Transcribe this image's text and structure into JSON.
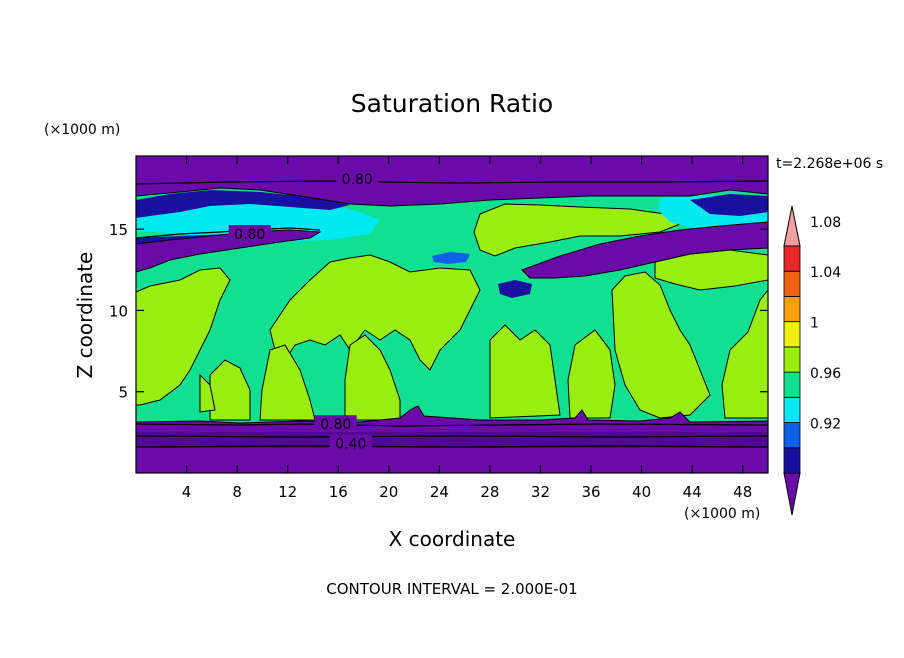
{
  "chart_data": {
    "type": "heatmap",
    "title": "Saturation Ratio",
    "xlabel": "X coordinate",
    "ylabel": "Z coordinate",
    "x_unit": "(×1000 m)",
    "y_unit": "(×1000 m)",
    "time_label": "t=2.268e+06 s",
    "footer": "CONTOUR INTERVAL = 2.000E-01",
    "xlim": [
      0,
      50
    ],
    "ylim": [
      0,
      19.5
    ],
    "x_ticks": [
      4,
      8,
      12,
      16,
      20,
      24,
      28,
      32,
      36,
      40,
      44,
      48
    ],
    "y_ticks": [
      5,
      10,
      15
    ],
    "contour_labels": [
      {
        "text": "0.80",
        "x": 17.5,
        "z": 18.1
      },
      {
        "text": "0.80",
        "x": 9.0,
        "z": 14.7
      },
      {
        "text": "0.80",
        "x": 15.8,
        "z": 3.0
      },
      {
        "text": "0.40",
        "x": 17.0,
        "z": 1.8
      }
    ],
    "colorbar": {
      "levels": [
        "0.92",
        "0.96",
        "1",
        "1.04",
        "1.08"
      ],
      "colors": [
        "#6a0aa8",
        "#1a10a0",
        "#1060e8",
        "#00e8f0",
        "#10e090",
        "#99ee10",
        "#f0f010",
        "#f8a010",
        "#f06010",
        "#e82828",
        "#f0a0a0"
      ]
    },
    "regions": {
      "dry_top_color": "#6a0aa8",
      "dry_bottom_color": "#6a0aa8",
      "band_color": "#2a1aa0",
      "ice_color": "#00e8f0",
      "saturated_color": "#10e090",
      "supersat_color": "#99ee10"
    }
  }
}
